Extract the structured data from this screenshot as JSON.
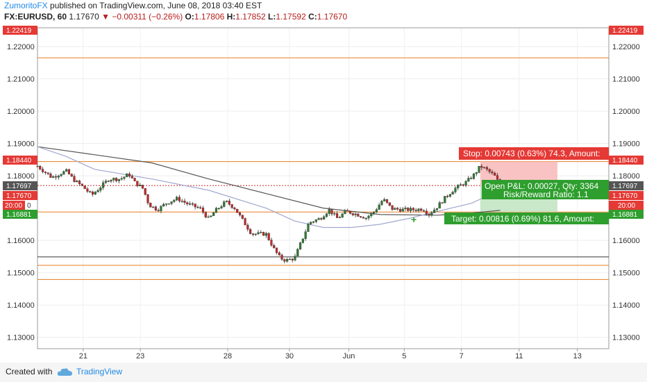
{
  "header": {
    "brand": "ZumoritoFX",
    "published_text": " published on TradingView.com, June 08, 2018 03:40 EST",
    "symbol": "FX:EURUSD, 60",
    "last": "1.17670",
    "change": "−0.00311 (−0.26%)",
    "open_label": "O:",
    "open": "1.17806",
    "high_label": "H:",
    "high": "1.17852",
    "low_label": "L:",
    "low": "1.17592",
    "close_label": "C:",
    "close": "1.17670"
  },
  "footer": {
    "created_with": "Created with",
    "brand": "TradingView"
  },
  "position": {
    "stop_text": "Stop: 0.00743 (0.63%) 74.3, Amount:",
    "pl_text": "Open P&L: 0.00027, Qty: 3364",
    "rr_text": "Risk/Reward Ratio: 1.1",
    "target_text": "Target: 0.00816 (0.69%) 81.6, Amount:"
  },
  "price_labels": {
    "top": "1.22419",
    "stop": "1.18440",
    "current": "1.17697",
    "last": "1.17670",
    "timer": "20:00",
    "target": "1.16881",
    "left_partial": "0"
  },
  "chart_data": {
    "type": "candlestick",
    "title": "",
    "x_axis": [
      "21",
      "23",
      "28",
      "30",
      "Jun",
      "5",
      "7",
      "11",
      "13"
    ],
    "y_axis": [
      "1.22000",
      "1.21000",
      "1.20000",
      "1.19000",
      "1.18000",
      "1.16000",
      "1.15000",
      "1.14000",
      "1.13000"
    ],
    "ylim": [
      1.1265,
      1.2258
    ],
    "xlim": [
      0,
      1000
    ],
    "x_ticks": [
      80,
      180,
      333,
      441,
      545,
      642,
      742,
      843,
      945
    ],
    "horizontal_levels": [
      {
        "value": 1.2165,
        "color": "#e67e22"
      },
      {
        "value": 1.1844,
        "color": "#e67e22"
      },
      {
        "value": 1.1688,
        "color": "#e67e22"
      },
      {
        "value": 1.1549,
        "color": "#333333"
      },
      {
        "value": 1.1523,
        "color": "#e67e22"
      },
      {
        "value": 1.1479,
        "color": "#e67e22"
      }
    ],
    "current_price_line": 1.17697,
    "candle_anchors": [
      [
        0,
        1.183
      ],
      [
        25,
        1.1795
      ],
      [
        50,
        1.1815
      ],
      [
        65,
        1.1785
      ],
      [
        80,
        1.1765
      ],
      [
        95,
        1.174
      ],
      [
        110,
        1.1765
      ],
      [
        125,
        1.179
      ],
      [
        145,
        1.179
      ],
      [
        160,
        1.1805
      ],
      [
        170,
        1.178
      ],
      [
        185,
        1.176
      ],
      [
        195,
        1.171
      ],
      [
        210,
        1.1695
      ],
      [
        225,
        1.1715
      ],
      [
        245,
        1.173
      ],
      [
        260,
        1.1715
      ],
      [
        285,
        1.1698
      ],
      [
        300,
        1.1665
      ],
      [
        310,
        1.169
      ],
      [
        330,
        1.172
      ],
      [
        345,
        1.17
      ],
      [
        360,
        1.166
      ],
      [
        375,
        1.162
      ],
      [
        400,
        1.162
      ],
      [
        415,
        1.157
      ],
      [
        425,
        1.1545
      ],
      [
        435,
        1.1538
      ],
      [
        450,
        1.1545
      ],
      [
        465,
        1.161
      ],
      [
        475,
        1.1655
      ],
      [
        495,
        1.1668
      ],
      [
        510,
        1.1695
      ],
      [
        525,
        1.1668
      ],
      [
        540,
        1.169
      ],
      [
        560,
        1.168
      ],
      [
        575,
        1.167
      ],
      [
        590,
        1.169
      ],
      [
        605,
        1.1728
      ],
      [
        620,
        1.1698
      ],
      [
        640,
        1.1695
      ],
      [
        660,
        1.1695
      ],
      [
        675,
        1.1698
      ],
      [
        685,
        1.168
      ],
      [
        700,
        1.1705
      ],
      [
        715,
        1.1735
      ],
      [
        730,
        1.176
      ],
      [
        750,
        1.178
      ],
      [
        765,
        1.1805
      ],
      [
        775,
        1.183
      ],
      [
        785,
        1.182
      ],
      [
        800,
        1.18
      ],
      [
        810,
        1.177
      ]
    ],
    "moving_averages": [
      {
        "name": "",
        "color": "#555555",
        "points": [
          [
            0,
            1.189
          ],
          [
            100,
            1.1865
          ],
          [
            200,
            1.184
          ],
          [
            300,
            1.179
          ],
          [
            400,
            1.1745
          ],
          [
            500,
            1.17
          ],
          [
            600,
            1.168
          ],
          [
            700,
            1.1678
          ],
          [
            760,
            1.1685
          ],
          [
            810,
            1.1693
          ]
        ]
      },
      {
        "name": "",
        "color": "#a0a8d0",
        "points": [
          [
            0,
            1.189
          ],
          [
            50,
            1.186
          ],
          [
            100,
            1.182
          ],
          [
            200,
            1.179
          ],
          [
            300,
            1.1755
          ],
          [
            400,
            1.17
          ],
          [
            450,
            1.166
          ],
          [
            500,
            1.164
          ],
          [
            550,
            1.164
          ],
          [
            600,
            1.165
          ],
          [
            650,
            1.1668
          ],
          [
            700,
            1.169
          ],
          [
            760,
            1.1715
          ],
          [
            790,
            1.174
          ]
        ]
      }
    ],
    "position": {
      "x_start": 775,
      "x_end": 910,
      "entry": 1.17697,
      "stop": 1.1844,
      "target": 1.16881
    }
  }
}
